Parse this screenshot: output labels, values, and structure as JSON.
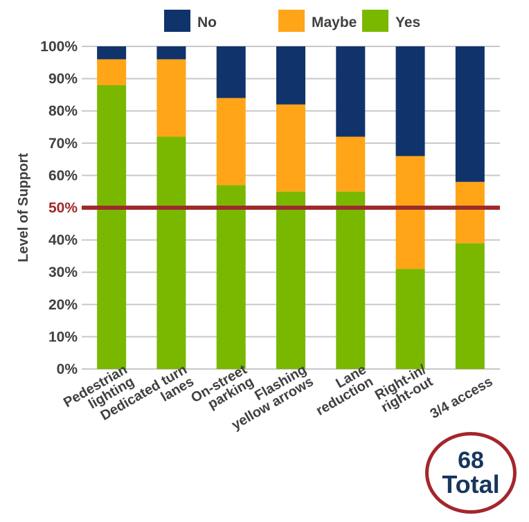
{
  "chart_data": {
    "type": "bar",
    "stacked": true,
    "ylabel": "Level of Support",
    "ylim": [
      0,
      100
    ],
    "yticks": [
      "0%",
      "10%",
      "20%",
      "30%",
      "40%",
      "50%",
      "60%",
      "70%",
      "80%",
      "90%",
      "100%"
    ],
    "grid": true,
    "legend_position": "top",
    "categories": [
      [
        "Pedestrian",
        "lighting"
      ],
      [
        "Dedicated turn",
        "lanes"
      ],
      [
        "On-street",
        "parking"
      ],
      [
        "Flashing",
        "yellow arrows"
      ],
      [
        "Lane",
        "reduction"
      ],
      [
        "Right-in/",
        "right-out"
      ],
      [
        "3/4 access"
      ]
    ],
    "series": [
      {
        "name": "Yes",
        "color": "#7ab800",
        "values": [
          88,
          72,
          57,
          55,
          55,
          31,
          39
        ]
      },
      {
        "name": "Maybe",
        "color": "#ffa517",
        "values": [
          8,
          24,
          27,
          27,
          17,
          35,
          19
        ]
      },
      {
        "name": "No",
        "color": "#10336b",
        "values": [
          4,
          4,
          16,
          18,
          28,
          34,
          42
        ]
      }
    ],
    "legend_order": [
      "No",
      "Maybe",
      "Yes"
    ],
    "reference_line": {
      "value": 50,
      "label": "50%",
      "color": "#9e2a2b"
    }
  },
  "badge": {
    "number": "68",
    "label": "Total"
  }
}
